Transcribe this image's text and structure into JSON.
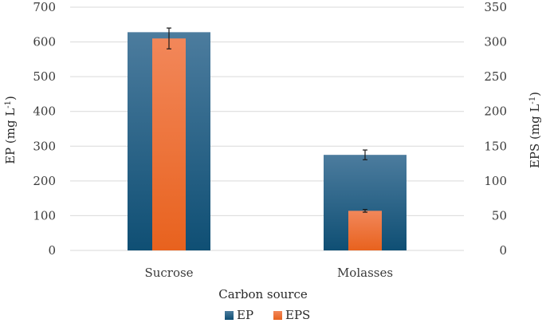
{
  "chart_data": {
    "type": "bar",
    "categories": [
      "Sucrose",
      "Molasses"
    ],
    "xlabel": "Carbon source",
    "ylabel_left": "EP (mg L",
    "ylabel_left_sup": "-1",
    "ylabel_left_close": ")",
    "ylabel_right": "EPS (mg L",
    "ylabel_right_sup": "-1",
    "ylabel_right_close": ")",
    "y_left_lim": [
      0,
      700
    ],
    "y_left_ticks": [
      "0",
      "100",
      "200",
      "300",
      "400",
      "500",
      "600",
      "700"
    ],
    "y_right_lim": [
      0,
      350
    ],
    "y_right_ticks": [
      "0",
      "50",
      "100",
      "150",
      "200",
      "250",
      "300",
      "350"
    ],
    "grid": "horizontal",
    "legend_position": "bottom-center",
    "series": [
      {
        "name": "EP",
        "axis": "left",
        "values": [
          628,
          275
        ],
        "errors": [
          null,
          14
        ],
        "color": "#1d5a80"
      },
      {
        "name": "EPS",
        "axis": "right",
        "values": [
          305,
          57
        ],
        "errors": [
          15,
          2
        ],
        "color": "#f07030"
      }
    ]
  }
}
